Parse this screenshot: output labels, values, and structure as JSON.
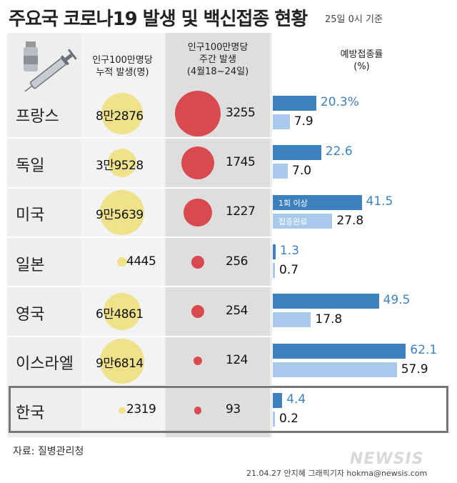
{
  "title": "주요국 코로나19 발생 및 백신접종 현황",
  "subtitle": "25일 0시 기준",
  "headers": {
    "cases": [
      "인구100만명당",
      "누적 발생(명)"
    ],
    "weekly": [
      "인구100만명당",
      "주간 발생",
      "(4월18~24일)"
    ],
    "vaccination": [
      "예방접종률",
      "(%)"
    ]
  },
  "bar_labels": {
    "first_dose": "1회 이상",
    "completed": "접종완료"
  },
  "source": "자료: 질병관리청",
  "credit": "21.04.27 안지혜 그래픽기자 hokma@newsis.com",
  "watermark": "NEWSIS",
  "colors": {
    "first_dose": "#3d82c0",
    "completed": "#a8c8ec",
    "cases_circle": "#efe28a",
    "weekly_circle": "#d94a4e"
  },
  "chart_data": {
    "type": "table",
    "rows": [
      {
        "country": "프랑스",
        "cases_label": "8만2876",
        "cases": 82876,
        "weekly": 3255,
        "first_dose_label": "20.3%",
        "first_dose": 20.3,
        "completed_label": "7.9",
        "completed": 7.9
      },
      {
        "country": "독일",
        "cases_label": "3만9528",
        "cases": 39528,
        "weekly": 1745,
        "first_dose_label": "22.6",
        "first_dose": 22.6,
        "completed_label": "7.0",
        "completed": 7.0
      },
      {
        "country": "미국",
        "cases_label": "9만5639",
        "cases": 95639,
        "weekly": 1227,
        "first_dose_label": "41.5",
        "first_dose": 41.5,
        "completed_label": "27.8",
        "completed": 27.8
      },
      {
        "country": "일본",
        "cases_label": "4445",
        "cases": 4445,
        "weekly": 256,
        "first_dose_label": "1.3",
        "first_dose": 1.3,
        "completed_label": "0.7",
        "completed": 0.7
      },
      {
        "country": "영국",
        "cases_label": "6만4861",
        "cases": 64861,
        "weekly": 254,
        "first_dose_label": "49.5",
        "first_dose": 49.5,
        "completed_label": "17.8",
        "completed": 17.8
      },
      {
        "country": "이스라엘",
        "cases_label": "9만6814",
        "cases": 96814,
        "weekly": 124,
        "first_dose_label": "62.1",
        "first_dose": 62.1,
        "completed_label": "57.9",
        "completed": 57.9
      },
      {
        "country": "한국",
        "cases_label": "2319",
        "cases": 2319,
        "weekly": 93,
        "first_dose_label": "4.4",
        "first_dose": 4.4,
        "completed_label": "0.2",
        "completed": 0.2
      }
    ]
  }
}
